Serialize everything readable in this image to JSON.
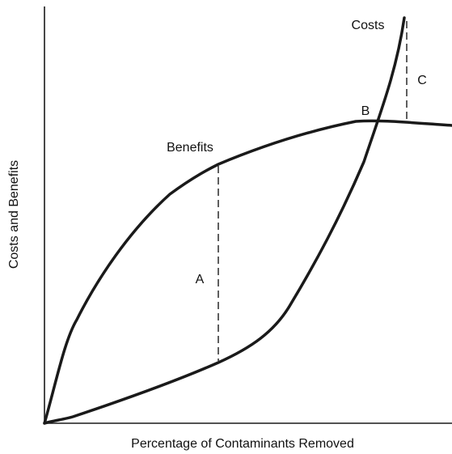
{
  "diagram": {
    "x_axis_label": "Percentage of Contaminants Removed",
    "y_axis_label": "Costs and Benefits",
    "curves": [
      {
        "label": "Benefits"
      },
      {
        "label": "Costs"
      }
    ],
    "points": [
      {
        "label": "A"
      },
      {
        "label": "B"
      },
      {
        "label": "C"
      }
    ]
  }
}
